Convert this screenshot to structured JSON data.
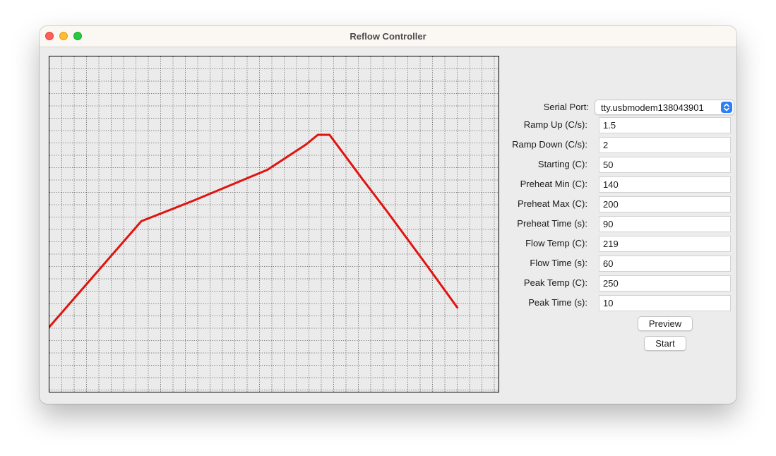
{
  "window": {
    "title": "Reflow Controller"
  },
  "colors": {
    "plot_line": "#e0140f",
    "plot_background": "#ebebeb",
    "grid": "#555555",
    "select_accent": "#2b7ff6"
  },
  "chart_data": {
    "type": "line",
    "grid": true,
    "units": [
      "s",
      "C"
    ],
    "series": [
      {
        "points": [
          [
            0,
            50
          ],
          [
            78.4,
            160
          ],
          [
            124,
            182
          ],
          [
            186,
            213.6
          ],
          [
            219,
            240
          ],
          [
            229,
            250
          ],
          [
            239,
            250
          ],
          [
            267,
            204
          ],
          [
            287,
            172
          ],
          [
            322,
            114
          ],
          [
            348,
            70
          ]
        ]
      }
    ]
  },
  "form": {
    "serial_port": {
      "label": "Serial Port:",
      "value": "tty.usbmodem138043901"
    },
    "fields": [
      {
        "name": "ramp-up",
        "label": "Ramp Up (C/s):",
        "value": "1.5"
      },
      {
        "name": "ramp-down",
        "label": "Ramp Down (C/s):",
        "value": "2"
      },
      {
        "name": "starting",
        "label": "Starting (C):",
        "value": "50"
      },
      {
        "name": "preheat-min",
        "label": "Preheat Min (C):",
        "value": "140"
      },
      {
        "name": "preheat-max",
        "label": "Preheat Max (C):",
        "value": "200"
      },
      {
        "name": "preheat-time",
        "label": "Preheat Time (s):",
        "value": "90"
      },
      {
        "name": "flow-temp",
        "label": "Flow Temp (C):",
        "value": "219"
      },
      {
        "name": "flow-time",
        "label": "Flow Time (s):",
        "value": "60"
      },
      {
        "name": "peak-temp",
        "label": "Peak Temp (C):",
        "value": "250"
      },
      {
        "name": "peak-time",
        "label": "Peak Time (s):",
        "value": "10"
      }
    ]
  },
  "buttons": {
    "preview": "Preview",
    "start": "Start"
  }
}
